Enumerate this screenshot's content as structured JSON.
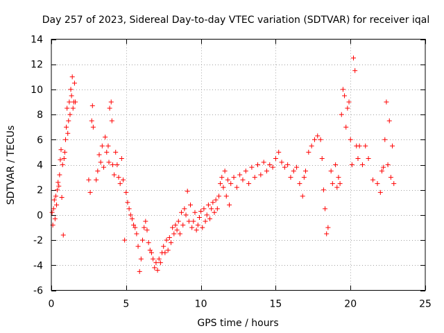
{
  "chart_data": {
    "type": "scatter",
    "title": "Day 257 of 2023, Sidereal Day-to-day VTEC variation (SDTVAR) for receiver iqal",
    "xlabel": "GPS time / hours",
    "ylabel": "SDTVAR / TECUs",
    "xlim": [
      0,
      25
    ],
    "ylim": [
      -6,
      14
    ],
    "xticks": [
      0,
      5,
      10,
      15,
      20,
      25
    ],
    "yticks": [
      -6,
      -4,
      -2,
      0,
      2,
      4,
      6,
      8,
      10,
      12,
      14
    ],
    "grid": true,
    "marker": "+",
    "series_color": "#ff0000",
    "series": [
      {
        "name": "SDTVAR",
        "points": [
          [
            0.05,
            0.2
          ],
          [
            0.1,
            -0.8
          ],
          [
            0.15,
            0.5
          ],
          [
            0.2,
            1.2
          ],
          [
            0.25,
            -0.3
          ],
          [
            0.3,
            1.5
          ],
          [
            0.35,
            0.8
          ],
          [
            0.4,
            2.0
          ],
          [
            0.45,
            2.6
          ],
          [
            0.5,
            2.3
          ],
          [
            0.55,
            3.2
          ],
          [
            0.6,
            4.4
          ],
          [
            0.65,
            5.2
          ],
          [
            0.7,
            1.4
          ],
          [
            0.75,
            4.0
          ],
          [
            0.8,
            -1.6
          ],
          [
            0.85,
            4.5
          ],
          [
            0.9,
            5.0
          ],
          [
            0.95,
            6.0
          ],
          [
            1.0,
            7.0
          ],
          [
            1.05,
            8.5
          ],
          [
            1.1,
            6.5
          ],
          [
            1.15,
            7.5
          ],
          [
            1.2,
            9.0
          ],
          [
            1.25,
            8.0
          ],
          [
            1.3,
            10.0
          ],
          [
            1.35,
            9.5
          ],
          [
            1.4,
            11.0
          ],
          [
            1.45,
            8.5
          ],
          [
            1.5,
            9.0
          ],
          [
            1.55,
            10.5
          ],
          [
            1.6,
            9.0
          ],
          [
            2.5,
            2.8
          ],
          [
            2.6,
            1.8
          ],
          [
            2.7,
            7.5
          ],
          [
            2.75,
            8.7
          ],
          [
            2.8,
            7.0
          ],
          [
            3.0,
            2.8
          ],
          [
            3.1,
            3.5
          ],
          [
            3.2,
            4.8
          ],
          [
            3.3,
            4.2
          ],
          [
            3.4,
            5.5
          ],
          [
            3.5,
            3.8
          ],
          [
            3.6,
            6.2
          ],
          [
            3.7,
            5.0
          ],
          [
            3.8,
            5.5
          ],
          [
            3.85,
            4.2
          ],
          [
            3.9,
            8.5
          ],
          [
            4.0,
            9.0
          ],
          [
            4.05,
            7.5
          ],
          [
            4.1,
            4.0
          ],
          [
            4.2,
            3.2
          ],
          [
            4.3,
            5.0
          ],
          [
            4.4,
            4.0
          ],
          [
            4.5,
            3.0
          ],
          [
            4.6,
            2.5
          ],
          [
            4.7,
            4.5
          ],
          [
            4.8,
            2.8
          ],
          [
            4.9,
            -2.0
          ],
          [
            5.0,
            1.8
          ],
          [
            5.1,
            1.0
          ],
          [
            5.2,
            0.5
          ],
          [
            5.3,
            0.0
          ],
          [
            5.4,
            -0.3
          ],
          [
            5.5,
            -0.8
          ],
          [
            5.6,
            -1.0
          ],
          [
            5.7,
            -1.5
          ],
          [
            5.8,
            -2.5
          ],
          [
            5.9,
            -4.5
          ],
          [
            6.0,
            -3.5
          ],
          [
            6.1,
            -2.0
          ],
          [
            6.2,
            -1.0
          ],
          [
            6.3,
            -0.5
          ],
          [
            6.4,
            -1.2
          ],
          [
            6.5,
            -2.2
          ],
          [
            6.6,
            -2.8
          ],
          [
            6.7,
            -3.0
          ],
          [
            6.8,
            -3.5
          ],
          [
            6.9,
            -4.2
          ],
          [
            7.0,
            -3.8
          ],
          [
            7.1,
            -4.4
          ],
          [
            7.2,
            -3.5
          ],
          [
            7.3,
            -3.8
          ],
          [
            7.4,
            -3.0
          ],
          [
            7.5,
            -2.5
          ],
          [
            7.6,
            -3.0
          ],
          [
            7.7,
            -2.0
          ],
          [
            7.8,
            -2.8
          ],
          [
            7.9,
            -1.8
          ],
          [
            8.0,
            -2.2
          ],
          [
            8.1,
            -1.0
          ],
          [
            8.2,
            -1.5
          ],
          [
            8.3,
            -0.8
          ],
          [
            8.4,
            -1.2
          ],
          [
            8.5,
            -0.5
          ],
          [
            8.6,
            -1.5
          ],
          [
            8.7,
            0.2
          ],
          [
            8.8,
            -0.8
          ],
          [
            8.9,
            0.5
          ],
          [
            9.0,
            0.0
          ],
          [
            9.1,
            1.9
          ],
          [
            9.2,
            -0.5
          ],
          [
            9.3,
            0.8
          ],
          [
            9.4,
            -1.0
          ],
          [
            9.5,
            -0.5
          ],
          [
            9.6,
            0.2
          ],
          [
            9.7,
            -1.2
          ],
          [
            9.8,
            -0.8
          ],
          [
            9.9,
            -0.2
          ],
          [
            10.0,
            0.3
          ],
          [
            10.1,
            -1.0
          ],
          [
            10.2,
            0.5
          ],
          [
            10.3,
            -0.5
          ],
          [
            10.4,
            0.0
          ],
          [
            10.5,
            0.8
          ],
          [
            10.6,
            -0.3
          ],
          [
            10.7,
            0.5
          ],
          [
            10.8,
            1.0
          ],
          [
            10.9,
            0.2
          ],
          [
            11.0,
            1.2
          ],
          [
            11.1,
            0.5
          ],
          [
            11.2,
            1.5
          ],
          [
            11.3,
            2.5
          ],
          [
            11.4,
            3.0
          ],
          [
            11.5,
            2.2
          ],
          [
            11.6,
            3.5
          ],
          [
            11.7,
            1.5
          ],
          [
            11.8,
            2.8
          ],
          [
            11.9,
            0.8
          ],
          [
            12.0,
            2.5
          ],
          [
            12.2,
            3.0
          ],
          [
            12.4,
            2.2
          ],
          [
            12.6,
            3.2
          ],
          [
            12.8,
            2.8
          ],
          [
            13.0,
            3.5
          ],
          [
            13.2,
            2.5
          ],
          [
            13.4,
            3.8
          ],
          [
            13.6,
            3.0
          ],
          [
            13.8,
            4.0
          ],
          [
            14.0,
            3.2
          ],
          [
            14.2,
            4.2
          ],
          [
            14.4,
            3.5
          ],
          [
            14.6,
            4.0
          ],
          [
            14.8,
            3.8
          ],
          [
            15.0,
            4.5
          ],
          [
            15.2,
            5.0
          ],
          [
            15.4,
            4.2
          ],
          [
            15.6,
            3.8
          ],
          [
            15.8,
            4.0
          ],
          [
            16.0,
            3.0
          ],
          [
            16.2,
            3.5
          ],
          [
            16.4,
            3.8
          ],
          [
            16.6,
            2.5
          ],
          [
            16.8,
            1.5
          ],
          [
            16.9,
            3.0
          ],
          [
            17.0,
            3.5
          ],
          [
            17.2,
            5.0
          ],
          [
            17.4,
            5.5
          ],
          [
            17.6,
            6.0
          ],
          [
            17.8,
            6.3
          ],
          [
            18.0,
            6.0
          ],
          [
            18.1,
            4.5
          ],
          [
            18.2,
            2.0
          ],
          [
            18.3,
            0.5
          ],
          [
            18.4,
            -1.5
          ],
          [
            18.5,
            -1.0
          ],
          [
            18.7,
            3.5
          ],
          [
            18.8,
            2.5
          ],
          [
            19.0,
            4.0
          ],
          [
            19.1,
            2.2
          ],
          [
            19.2,
            3.0
          ],
          [
            19.3,
            2.5
          ],
          [
            19.4,
            8.0
          ],
          [
            19.5,
            10.0
          ],
          [
            19.6,
            9.5
          ],
          [
            19.7,
            7.0
          ],
          [
            19.8,
            8.5
          ],
          [
            19.9,
            9.0
          ],
          [
            20.0,
            6.0
          ],
          [
            20.1,
            4.0
          ],
          [
            20.2,
            12.5
          ],
          [
            20.3,
            11.5
          ],
          [
            20.4,
            5.5
          ],
          [
            20.5,
            4.5
          ],
          [
            20.6,
            5.5
          ],
          [
            20.8,
            4.0
          ],
          [
            21.0,
            5.5
          ],
          [
            21.2,
            4.5
          ],
          [
            21.5,
            2.8
          ],
          [
            21.8,
            2.5
          ],
          [
            22.0,
            1.8
          ],
          [
            22.1,
            3.5
          ],
          [
            22.2,
            3.8
          ],
          [
            22.3,
            6.0
          ],
          [
            22.4,
            9.0
          ],
          [
            22.5,
            4.0
          ],
          [
            22.6,
            7.5
          ],
          [
            22.7,
            3.0
          ],
          [
            22.8,
            5.5
          ],
          [
            22.9,
            2.5
          ]
        ]
      }
    ]
  }
}
